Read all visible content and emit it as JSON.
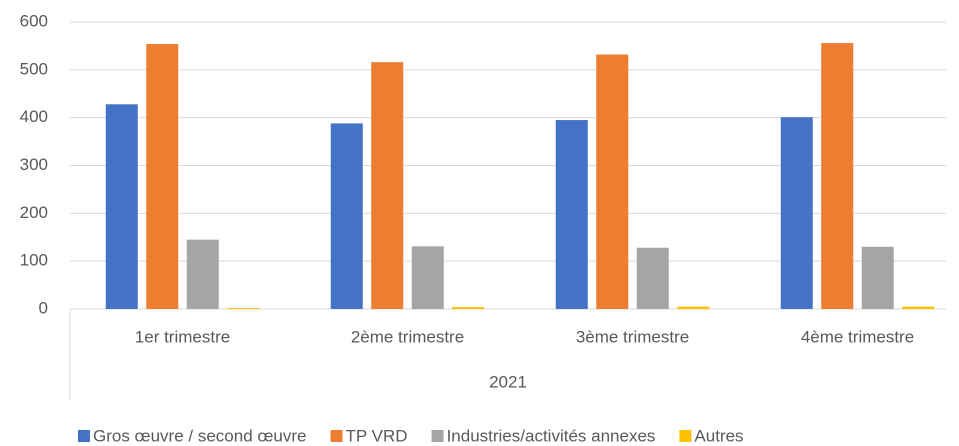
{
  "chart_data": {
    "type": "bar",
    "categories": [
      "1er trimestre",
      "2ème trimestre",
      "3ème trimestre",
      "4ème trimestre"
    ],
    "group_label": "2021",
    "series": [
      {
        "name": "Gros œuvre / second œuvre",
        "color": "#4472c4",
        "values": [
          428,
          388,
          395,
          401
        ]
      },
      {
        "name": "TP VRD",
        "color": "#ed7d31",
        "values": [
          554,
          516,
          532,
          556
        ]
      },
      {
        "name": "Industries/activités annexes",
        "color": "#a5a5a5",
        "values": [
          145,
          131,
          128,
          130
        ]
      },
      {
        "name": "Autres",
        "color": "#ffc000",
        "values": [
          2,
          4,
          5,
          5
        ]
      }
    ],
    "ylim": [
      0,
      600
    ],
    "yticks": [
      0,
      100,
      200,
      300,
      400,
      500,
      600
    ],
    "grid": true,
    "legend": "bottom"
  }
}
